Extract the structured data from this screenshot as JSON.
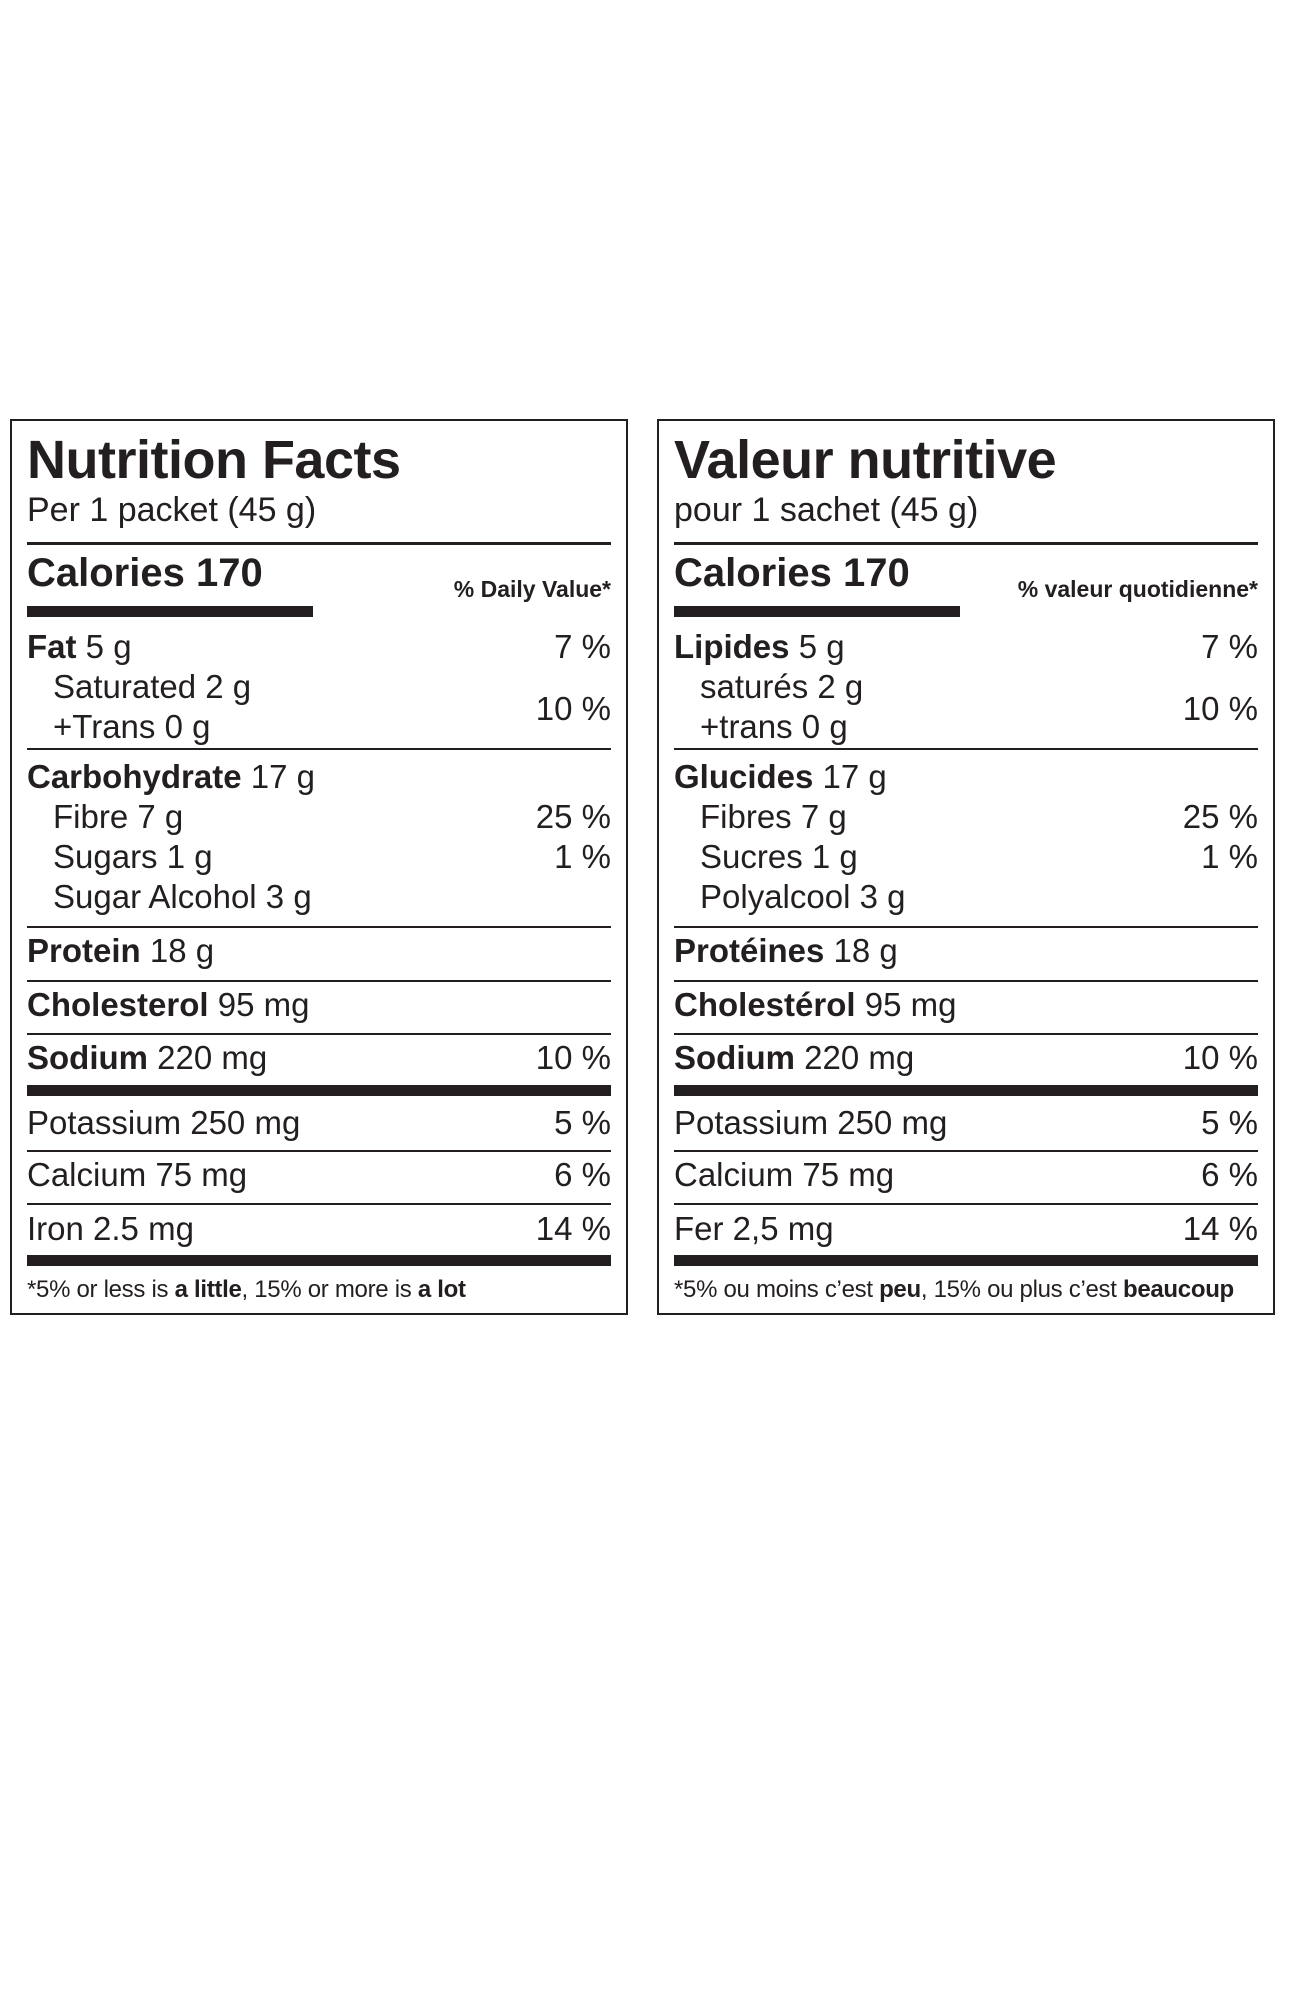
{
  "en": {
    "title": "Nutrition Facts",
    "serving": "Per 1 packet (45 g)",
    "calories": "Calories 170",
    "daily_value_header": "% Daily Value*",
    "fat": {
      "label": "Fat",
      "amount": " 5 g",
      "pct": "7 %"
    },
    "saturated": {
      "label": "Saturated 2 g"
    },
    "trans": {
      "label": "+Trans 0 g"
    },
    "sat_trans_pct": "10 %",
    "carbohydrate": {
      "label": "Carbohydrate",
      "amount": " 17 g"
    },
    "fibre": {
      "label": "Fibre 7 g",
      "pct": "25 %"
    },
    "sugars": {
      "label": "Sugars 1 g",
      "pct": "1 %"
    },
    "sugar_alcohol": {
      "label": "Sugar Alcohol 3 g"
    },
    "protein": {
      "label": "Protein",
      "amount": " 18 g"
    },
    "cholesterol": {
      "label": "Cholesterol",
      "amount": " 95 mg"
    },
    "sodium": {
      "label": "Sodium",
      "amount": " 220 mg",
      "pct": "10 %"
    },
    "potassium": {
      "label": "Potassium 250 mg",
      "pct": "5 %"
    },
    "calcium": {
      "label": "Calcium 75 mg",
      "pct": "6 %"
    },
    "iron": {
      "label": "Iron 2.5 mg",
      "pct": "14 %"
    },
    "footnote": {
      "p1": "*5% or less is ",
      "b1": "a little",
      "p2": ", 15% or more is ",
      "b2": "a lot"
    }
  },
  "fr": {
    "title": "Valeur nutritive",
    "serving": "pour 1 sachet (45 g)",
    "calories": "Calories 170",
    "daily_value_header": "% valeur quotidienne*",
    "fat": {
      "label": "Lipides",
      "amount": " 5 g",
      "pct": "7 %"
    },
    "saturated": {
      "label": "saturés 2 g"
    },
    "trans": {
      "label": "+trans 0 g"
    },
    "sat_trans_pct": "10 %",
    "carbohydrate": {
      "label": "Glucides",
      "amount": " 17 g"
    },
    "fibre": {
      "label": "Fibres 7 g",
      "pct": "25 %"
    },
    "sugars": {
      "label": "Sucres 1 g",
      "pct": "1 %"
    },
    "sugar_alcohol": {
      "label": "Polyalcool 3 g"
    },
    "protein": {
      "label": "Protéines",
      "amount": " 18 g"
    },
    "cholesterol": {
      "label": "Cholestérol",
      "amount": " 95 mg"
    },
    "sodium": {
      "label": "Sodium",
      "amount": " 220 mg",
      "pct": "10 %"
    },
    "potassium": {
      "label": "Potassium 250 mg",
      "pct": "5 %"
    },
    "calcium": {
      "label": "Calcium 75 mg",
      "pct": "6 %"
    },
    "iron": {
      "label": "Fer 2,5 mg",
      "pct": "14 %"
    },
    "footnote": {
      "p1": "*5% ou moins c’est ",
      "b1": "peu",
      "p2": ", 15% ou plus c’est ",
      "b2": "beaucoup"
    }
  }
}
